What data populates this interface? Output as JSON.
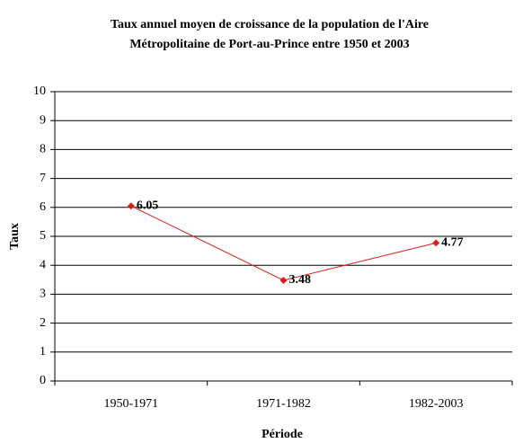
{
  "chart_data": {
    "type": "line",
    "title": [
      "Taux annuel moyen de croissance de la population de l'Aire",
      "Métropolitaine de Port-au-Prince entre 1950 et 2003"
    ],
    "x_label": "Période",
    "y_label": "Taux",
    "categories": [
      "1950-1971",
      "1971-1982",
      "1982-2003"
    ],
    "series": [
      {
        "name": "Taux",
        "color": "#e41a1a",
        "values": [
          6.05,
          3.48,
          4.77
        ]
      }
    ],
    "ylim": [
      0,
      10
    ],
    "yticks": [
      0,
      1,
      2,
      3,
      4,
      5,
      6,
      7,
      8,
      9,
      10
    ],
    "grid": true
  }
}
